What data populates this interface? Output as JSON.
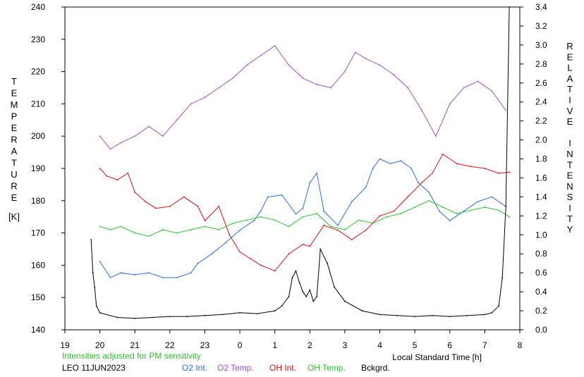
{
  "chart_data": {
    "type": "line",
    "station_date": "LEO 11JUN2023",
    "note": "Intensities adjusted for PM sensitivity",
    "xlabel": "Local Standard Time [h]",
    "ylabel_left_letters": [
      "T",
      "E",
      "M",
      "P",
      "E",
      "R",
      "A",
      "T",
      "U",
      "R",
      "E"
    ],
    "ylabel_left_unit": "[K]",
    "ylabel_right_letters": [
      "R",
      "E",
      "L",
      "A",
      "T",
      "I",
      "V",
      "E",
      " ",
      "I",
      "N",
      "T",
      "E",
      "N",
      "S",
      "I",
      "T",
      "Y"
    ],
    "x_ticks": [
      "19",
      "20",
      "21",
      "22",
      "23",
      "0",
      "1",
      "2",
      "3",
      "4",
      "5",
      "6",
      "7",
      "8"
    ],
    "xlim": [
      19,
      32
    ],
    "y_left_ticks": [
      "140",
      "150",
      "160",
      "170",
      "180",
      "190",
      "200",
      "210",
      "220",
      "230",
      "240"
    ],
    "ylim_left": [
      140,
      240
    ],
    "y_right_ticks": [
      "0.0",
      "0.2",
      "0.4",
      "0.6",
      "0.8",
      "1.0",
      "1.2",
      "1.4",
      "1.6",
      "1.8",
      "2.0",
      "2.2",
      "2.4",
      "2.6",
      "2.8",
      "3.0",
      "3.2",
      "3.4"
    ],
    "ylim_right": [
      0,
      3.4
    ],
    "x_scale_note": "x values in hours after local midnight of 11 Jun; 24=00h, 31=07h",
    "series": [
      {
        "name": "O2 Int.",
        "color": "#2a6fe0",
        "axis": "right",
        "x": [
          20.0,
          20.3,
          20.6,
          21.0,
          21.4,
          21.8,
          22.2,
          22.6,
          22.8,
          23.2,
          23.6,
          24.0,
          24.4,
          24.6,
          24.8,
          25.2,
          25.6,
          25.8,
          26.0,
          26.2,
          26.4,
          26.8,
          27.2,
          27.6,
          27.8,
          28.0,
          28.3,
          28.6,
          28.9,
          29.1,
          29.4,
          29.7,
          30.0,
          30.4,
          30.8,
          31.2,
          31.6
        ],
        "values": [
          0.72,
          0.55,
          0.6,
          0.58,
          0.6,
          0.55,
          0.55,
          0.6,
          0.7,
          0.8,
          0.92,
          1.05,
          1.15,
          1.25,
          1.4,
          1.42,
          1.22,
          1.28,
          1.55,
          1.65,
          1.25,
          1.1,
          1.35,
          1.5,
          1.7,
          1.8,
          1.75,
          1.78,
          1.7,
          1.55,
          1.45,
          1.25,
          1.15,
          1.25,
          1.35,
          1.4,
          1.3
        ]
      },
      {
        "name": "O2 Temp.",
        "color": "#a050d0",
        "axis": "left",
        "x": [
          20.0,
          20.3,
          20.6,
          21.0,
          21.4,
          21.8,
          22.2,
          22.6,
          23.0,
          23.4,
          23.8,
          24.2,
          24.6,
          25.0,
          25.4,
          25.8,
          26.2,
          26.6,
          27.0,
          27.3,
          27.6,
          28.0,
          28.4,
          28.8,
          29.2,
          29.6,
          30.0,
          30.4,
          30.8,
          31.2,
          31.6
        ],
        "values": [
          200,
          196,
          198,
          200,
          203,
          200,
          205,
          210,
          212,
          215,
          218,
          222,
          225,
          228,
          222,
          218,
          216,
          215,
          220,
          226,
          224,
          222,
          219,
          215,
          208,
          200,
          210,
          215,
          217,
          214,
          208
        ]
      },
      {
        "name": "OH Int.",
        "color": "#dd1010",
        "axis": "right",
        "x": [
          20.0,
          20.2,
          20.5,
          20.8,
          21.0,
          21.3,
          21.6,
          22.0,
          22.4,
          22.8,
          23.0,
          23.4,
          23.7,
          24.0,
          24.3,
          24.6,
          25.0,
          25.4,
          25.8,
          26.0,
          26.4,
          26.8,
          27.2,
          27.6,
          28.0,
          28.4,
          28.8,
          29.2,
          29.5,
          29.8,
          30.2,
          30.6,
          31.0,
          31.4,
          31.7
        ],
        "values": [
          1.7,
          1.62,
          1.58,
          1.65,
          1.45,
          1.35,
          1.28,
          1.3,
          1.4,
          1.3,
          1.15,
          1.3,
          1.0,
          0.82,
          0.75,
          0.68,
          0.62,
          0.8,
          0.9,
          0.88,
          1.1,
          1.05,
          0.95,
          1.05,
          1.2,
          1.25,
          1.4,
          1.55,
          1.65,
          1.85,
          1.75,
          1.72,
          1.7,
          1.65,
          1.66
        ]
      },
      {
        "name": "OH Temp.",
        "color": "#30c030",
        "axis": "left",
        "x": [
          20.0,
          20.3,
          20.6,
          21.0,
          21.4,
          21.8,
          22.2,
          22.6,
          23.0,
          23.4,
          23.8,
          24.2,
          24.6,
          25.0,
          25.4,
          25.8,
          26.2,
          26.6,
          27.0,
          27.4,
          27.8,
          28.2,
          28.6,
          29.0,
          29.4,
          29.8,
          30.2,
          30.6,
          31.0,
          31.4,
          31.7
        ],
        "values": [
          172,
          171,
          172,
          170,
          169,
          171,
          170,
          171,
          172,
          171,
          173,
          174,
          175,
          174,
          172,
          175,
          176,
          172,
          171,
          174,
          173,
          175,
          176,
          178,
          180,
          178,
          176,
          177,
          178,
          177,
          175
        ]
      },
      {
        "name": "Bckgrd.",
        "color": "#000000",
        "axis": "right",
        "x": [
          19.75,
          19.8,
          19.85,
          19.9,
          20.0,
          20.5,
          21.0,
          21.5,
          22.0,
          22.5,
          23.0,
          23.5,
          24.0,
          24.5,
          25.0,
          25.2,
          25.4,
          25.5,
          25.6,
          25.7,
          25.8,
          25.9,
          26.0,
          26.1,
          26.2,
          26.3,
          26.5,
          26.7,
          27.0,
          27.5,
          28.0,
          28.5,
          29.0,
          29.5,
          30.0,
          30.5,
          31.0,
          31.2,
          31.4,
          31.5,
          31.6,
          31.7
        ],
        "values": [
          0.95,
          0.6,
          0.45,
          0.25,
          0.18,
          0.13,
          0.12,
          0.13,
          0.14,
          0.14,
          0.15,
          0.16,
          0.18,
          0.17,
          0.2,
          0.25,
          0.35,
          0.55,
          0.62,
          0.5,
          0.4,
          0.35,
          0.42,
          0.3,
          0.35,
          0.85,
          0.7,
          0.45,
          0.3,
          0.2,
          0.16,
          0.15,
          0.14,
          0.15,
          0.14,
          0.15,
          0.16,
          0.18,
          0.25,
          0.55,
          1.3,
          3.4
        ]
      }
    ]
  }
}
